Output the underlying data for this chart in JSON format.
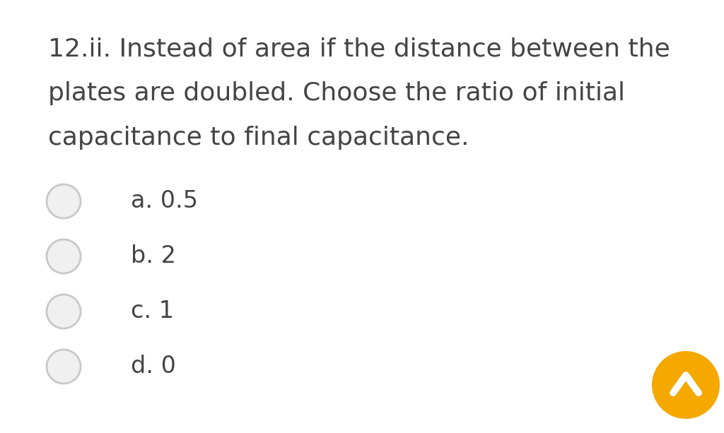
{
  "background_color": "#ffffff",
  "question_text_lines": [
    "12.ii. Instead of area if the distance between the",
    "plates are doubled. Choose the ratio of initial",
    "capacitance to final capacitance."
  ],
  "options": [
    "a. 0.5",
    "b. 2",
    "c. 1",
    "d. 0"
  ],
  "text_color": "#444444",
  "question_font_size": 26,
  "option_font_size": 24,
  "radio_outer_color": "#c8c8c8",
  "radio_inner_color": "#f0f0f0",
  "arrow_button_color": "#f5a800",
  "arrow_color": "#ffffff"
}
